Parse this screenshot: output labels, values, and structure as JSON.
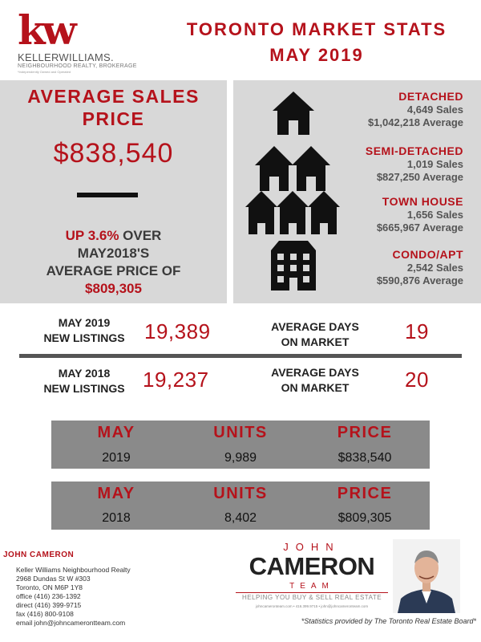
{
  "logo": {
    "mark": "kw",
    "name": "KELLERWILLIAMS.",
    "sub": "NEIGHBOURHOOD REALTY, BROKERAGE",
    "tag": "*Independently Owned and Operated"
  },
  "header": {
    "title_line1": "TORONTO MARKET STATS",
    "title_line2": "MAY 2019"
  },
  "average": {
    "title_line1": "AVERAGE SALES",
    "title_line2": "PRICE",
    "price": "$838,540",
    "up_text_red": "UP 3.6%",
    "up_text_rest": " OVER",
    "line2": "MAY2018'S",
    "line3": "AVERAGE PRICE OF",
    "prev_price": "$809,305"
  },
  "property_types": [
    {
      "name": "DETACHED",
      "sales": "4,649 Sales",
      "average": "$1,042,218 Average",
      "icon": "house-icon"
    },
    {
      "name": "SEMI-DETACHED",
      "sales": "1,019 Sales",
      "average": "$827,250 Average",
      "icon": "semi-detached-icon"
    },
    {
      "name": "TOWN HOUSE",
      "sales": "1,656 Sales",
      "average": "$665,967 Average",
      "icon": "townhouse-icon"
    },
    {
      "name": "CONDO/APT",
      "sales": "2,542 Sales",
      "average": "$590,876 Average",
      "icon": "condo-building-icon"
    }
  ],
  "listings": {
    "row1": {
      "label_line1": "MAY 2019",
      "label_line2": "NEW LISTINGS",
      "value": "19,389",
      "dom_line1": "AVERAGE DAYS",
      "dom_line2": "ON MARKET",
      "dom_value": "19"
    },
    "row2": {
      "label_line1": "MAY 2018",
      "label_line2": "NEW LISTINGS",
      "value": "19,237",
      "dom_line1": "AVERAGE DAYS",
      "dom_line2": "ON MARKET",
      "dom_value": "20"
    }
  },
  "tables": [
    {
      "headers": [
        "MAY",
        "UNITS",
        "PRICE"
      ],
      "values": [
        "2019",
        "9,989",
        "$838,540"
      ]
    },
    {
      "headers": [
        "MAY",
        "UNITS",
        "PRICE"
      ],
      "values": [
        "2018",
        "8,402",
        "$809,305"
      ]
    }
  ],
  "agent": {
    "name": "JOHN CAMERON",
    "brokerage": "Keller Williams Neighbourhood Realty",
    "address1": "2968 Dundas St W #303",
    "address2": "Toronto, ON  M6P 1Y8",
    "office": "office (416) 236-1392",
    "direct": "direct (416) 399-9715",
    "fax": "fax (416) 800-9108",
    "email": "email john@johncamerontteam.com"
  },
  "team_logo": {
    "john": "JOHN",
    "cameron": "CAMERON",
    "team": "TEAM",
    "tagline": "HELPING YOU BUY & SELL REAL ESTATE",
    "contact_line": "johncameronteam.com  •  416.399.9715  •  john@johncameronteam.com"
  },
  "disclaimer": "*Statistics provided by The Toronto Real Estate Board*",
  "colors": {
    "accent": "#b5121b",
    "panel": "#d8d8d8",
    "table": "#8a8a8a"
  }
}
